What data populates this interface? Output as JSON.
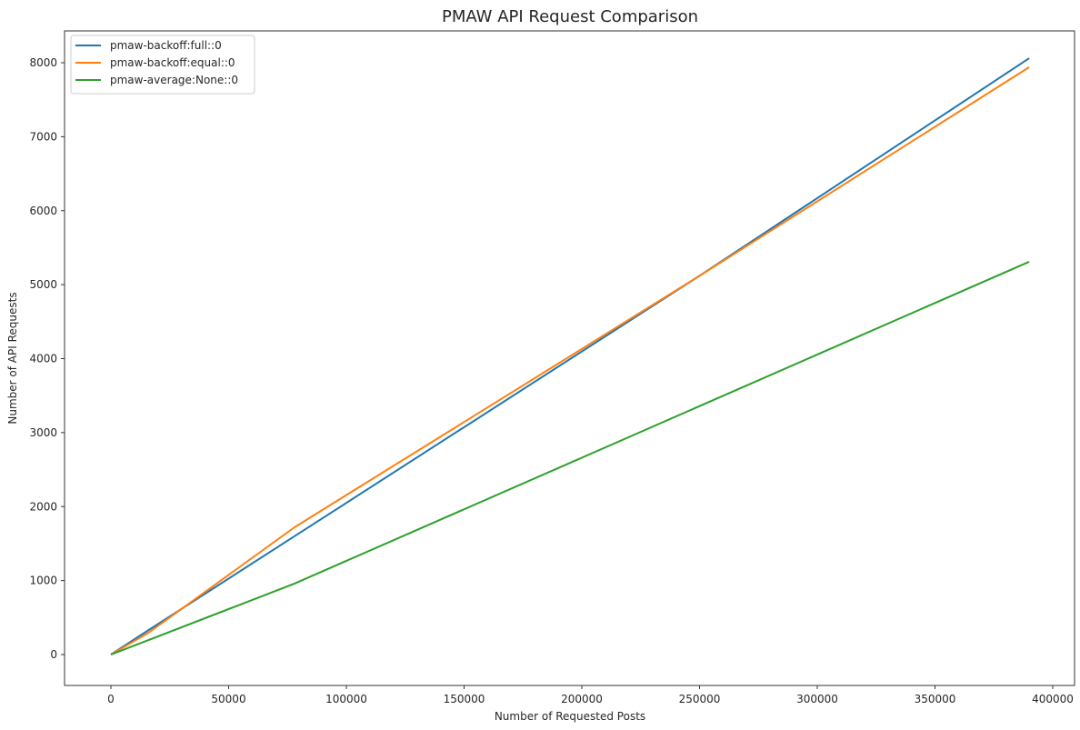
{
  "chart_data": {
    "type": "line",
    "title": "PMAW API Request Comparison",
    "xlabel": "Number of Requested Posts",
    "ylabel": "Number of API Requests",
    "xlim": [
      -20000,
      410000
    ],
    "ylim": [
      -410,
      8450
    ],
    "xticks": [
      0,
      50000,
      100000,
      150000,
      200000,
      250000,
      300000,
      350000,
      400000
    ],
    "xtick_labels": [
      "0",
      "50000",
      "100000",
      "150000",
      "200000",
      "250000",
      "300000",
      "350000",
      "400000"
    ],
    "yticks": [
      0,
      1000,
      2000,
      3000,
      4000,
      5000,
      6000,
      7000,
      8000
    ],
    "ytick_labels": [
      "0",
      "1000",
      "2000",
      "3000",
      "4000",
      "5000",
      "6000",
      "7000",
      "8000"
    ],
    "grid": false,
    "legend_position": "upper left",
    "series": [
      {
        "name": "pmaw-backoff:full::0",
        "color": "#1f77b4",
        "x": [
          0,
          16000,
          78000,
          250000,
          390000
        ],
        "y": [
          0,
          330,
          1600,
          5120,
          8060
        ]
      },
      {
        "name": "pmaw-backoff:equal::0",
        "color": "#ff7f0e",
        "x": [
          0,
          16000,
          78000,
          250000,
          390000
        ],
        "y": [
          0,
          295,
          1720,
          5120,
          7940
        ]
      },
      {
        "name": "pmaw-average:None::0",
        "color": "#2ca02c",
        "x": [
          0,
          16000,
          78000,
          390000
        ],
        "y": [
          0,
          195,
          960,
          5310
        ]
      }
    ]
  }
}
